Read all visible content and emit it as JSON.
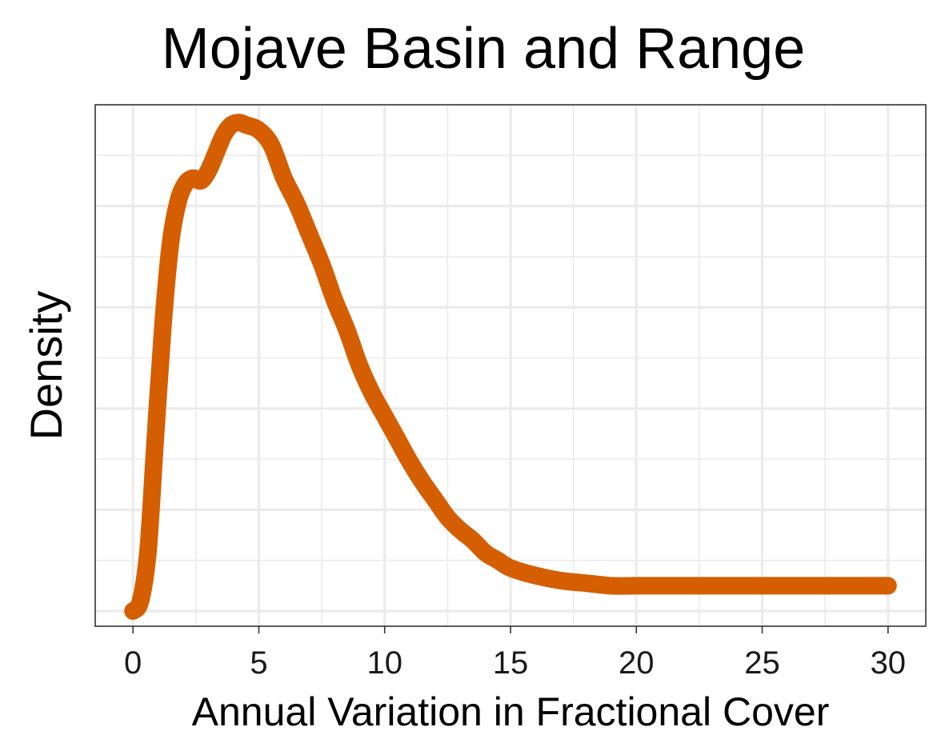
{
  "chart_data": {
    "type": "line",
    "title": "Mojave Basin and Range",
    "xlabel": "Annual Variation in Fractional Cover",
    "ylabel": "Density",
    "xlim": [
      -1.5,
      31.5
    ],
    "ylim": [
      -0.003,
      0.1
    ],
    "x_ticks": [
      0,
      5,
      10,
      15,
      20,
      25,
      30
    ],
    "x_tick_labels": [
      "0",
      "5",
      "10",
      "15",
      "20",
      "25",
      "30"
    ],
    "y_tick_labels_shown": false,
    "grid": true,
    "series": [
      {
        "color": "#D55E00",
        "x": [
          0,
          0.3,
          0.6,
          0.9,
          1.2,
          1.5,
          1.8,
          2.1,
          2.4,
          2.7,
          3.0,
          3.3,
          3.6,
          3.9,
          4.2,
          4.5,
          5.0,
          5.5,
          6.0,
          6.5,
          7.0,
          7.5,
          8.0,
          8.5,
          9.0,
          9.5,
          10.0,
          10.5,
          11.0,
          11.5,
          12.0,
          12.5,
          13.0,
          13.5,
          14.0,
          14.5,
          15.0,
          16.0,
          17.0,
          18.0,
          19.0,
          20.0,
          21.0,
          22.0,
          23.0,
          24.0,
          25.0,
          26.0,
          27.0,
          28.0,
          29.0,
          30.0
        ],
        "y": [
          0.0,
          0.002,
          0.012,
          0.035,
          0.057,
          0.073,
          0.081,
          0.0845,
          0.0855,
          0.085,
          0.087,
          0.0905,
          0.094,
          0.096,
          0.0965,
          0.096,
          0.095,
          0.092,
          0.0855,
          0.0805,
          0.0745,
          0.0685,
          0.0615,
          0.0555,
          0.0485,
          0.043,
          0.0385,
          0.034,
          0.0295,
          0.0255,
          0.022,
          0.0185,
          0.016,
          0.014,
          0.0115,
          0.01,
          0.0085,
          0.007,
          0.006,
          0.0055,
          0.005,
          0.005,
          0.005,
          0.005,
          0.005,
          0.005,
          0.005,
          0.005,
          0.005,
          0.005,
          0.005,
          0.005
        ]
      }
    ]
  }
}
